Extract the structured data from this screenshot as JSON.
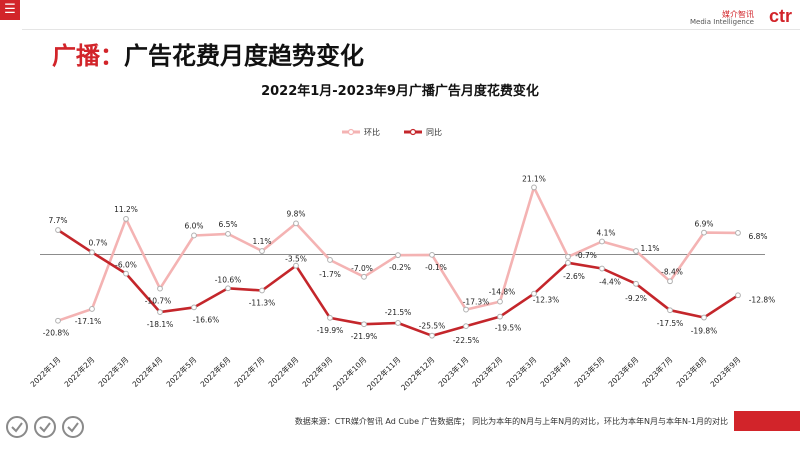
{
  "header": {
    "menu_icon": "hamburger-icon",
    "brand_cn": "媒介智讯",
    "brand_en": "Media Intelligence",
    "brand_logo": "ctr",
    "brand_color": "#d2242a"
  },
  "page_title": {
    "prefix": "广播：",
    "text": "广告花费月度趋势变化"
  },
  "chart_data": {
    "type": "line",
    "title": "2022年1月-2023年9月广播广告月度花费变化",
    "categories": [
      "2022年1月",
      "2022年2月",
      "2022年3月",
      "2022年4月",
      "2022年5月",
      "2022年6月",
      "2022年7月",
      "2022年8月",
      "2022年9月",
      "2022年10月",
      "2022年11月",
      "2022年12月",
      "2023年1月",
      "2023年2月",
      "2023年3月",
      "2023年4月",
      "2023年5月",
      "2023年6月",
      "2023年7月",
      "2023年8月",
      "2023年9月"
    ],
    "series": [
      {
        "name": "环比",
        "color": "#f4b3b3",
        "values": [
          -20.8,
          -17.1,
          11.2,
          -10.7,
          6.0,
          6.5,
          1.1,
          9.8,
          -1.7,
          -7.0,
          -0.2,
          -0.1,
          -17.3,
          -14.8,
          21.1,
          -0.7,
          4.1,
          1.1,
          -8.4,
          6.9,
          6.8
        ],
        "labels": [
          "-20.8%",
          "-17.1%",
          "11.2%",
          "-10.7%",
          "6.0%",
          "6.5%",
          "1.1%",
          "9.8%",
          "-1.7%",
          "-7.0%",
          "-0.2%",
          "-0.1%",
          "-17.3%",
          "-14.8%",
          "21.1%",
          "-0.7%",
          "4.1%",
          "1.1%",
          "-8.4%",
          "6.9%",
          "6.8%"
        ]
      },
      {
        "name": "同比",
        "color": "#c4262b",
        "values": [
          7.7,
          0.7,
          -6.0,
          -18.1,
          -16.6,
          -10.6,
          -11.3,
          -3.5,
          -19.9,
          -21.9,
          -21.5,
          -25.5,
          -22.5,
          -19.5,
          -12.3,
          -2.6,
          -4.4,
          -9.2,
          -17.5,
          -19.8,
          -12.8
        ],
        "labels": [
          "7.7%",
          "0.7%",
          "-6.0%",
          "-18.1%",
          "-16.6%",
          "-10.6%",
          "-11.3%",
          "-3.5%",
          "-19.9%",
          "-21.9%",
          "-21.5%",
          "-25.5%",
          "-22.5%",
          "-19.5%",
          "-12.3%",
          "-2.6%",
          "-4.4%",
          "-9.2%",
          "-17.5%",
          "-19.8%",
          "-12.8%"
        ]
      }
    ],
    "ylim": [
      -30,
      25
    ],
    "zero_line": true,
    "grid": false,
    "legend_position": "top-center"
  },
  "footer": {
    "source": "数据来源：CTR媒介智讯 Ad Cube 广告数据库； 同比为本年的N月与上年N月的对比，环比为本年N月与本年N-1月的对比",
    "badge_icons": [
      "certification-badge-icon",
      "certification-badge-icon",
      "certification-badge-icon"
    ],
    "accent_color": "#d2242a"
  }
}
